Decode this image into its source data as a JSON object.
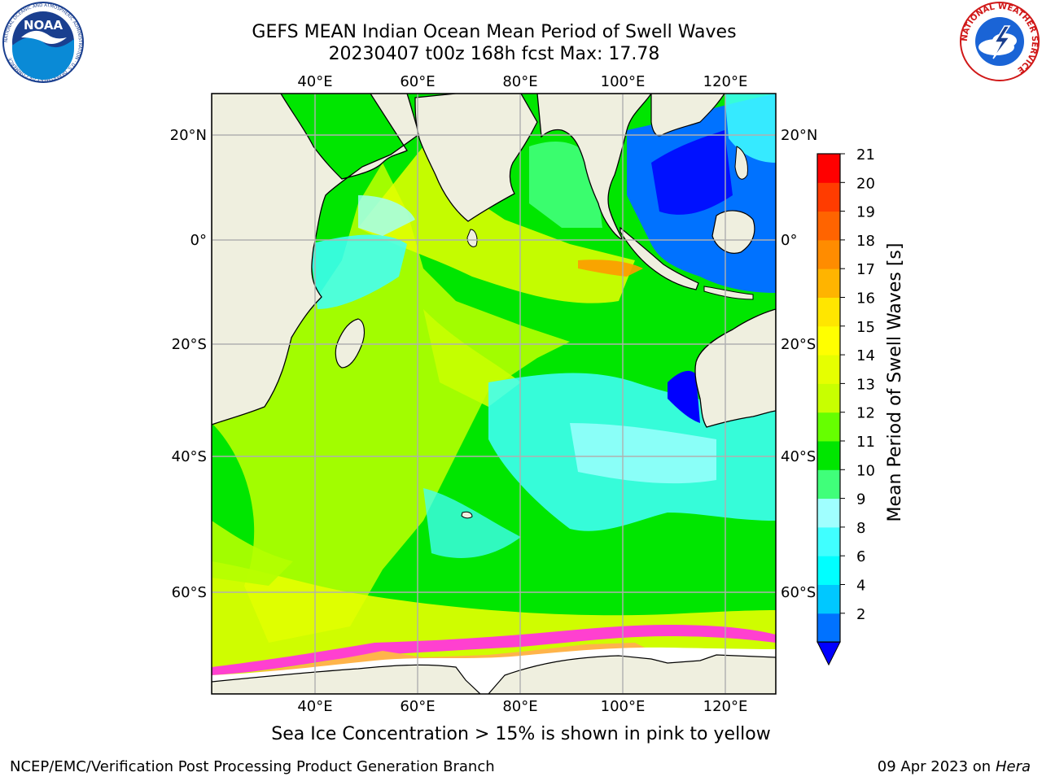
{
  "title_line1": "GEFS MEAN Indian Ocean Mean Period of Swell Waves",
  "title_line2": "20230407 t00z 168h fcst   Max: 17.78",
  "noaa_logo": {
    "center_text": "NOAA",
    "ring_text": "NATIONAL OCEANIC AND ATMOSPHERIC ADMINISTRATION · U.S. DEPARTMENT OF COMMERCE"
  },
  "nws_logo": {
    "ring_text": "NATIONAL WEATHER SERVICE"
  },
  "map": {
    "lon_labels": [
      "40°E",
      "60°E",
      "80°E",
      "100°E",
      "120°E"
    ],
    "lon_values": [
      40,
      60,
      80,
      100,
      120
    ],
    "lat_labels": [
      "20°N",
      "0°",
      "20°S",
      "40°S",
      "60°S"
    ],
    "lat_values": [
      20,
      0,
      -20,
      -40,
      -60
    ],
    "extent": {
      "lon_min": 20,
      "lon_max": 130,
      "lat_min": -70,
      "lat_max": 28
    },
    "colors": {
      "land": "#efefdf",
      "ice_pink": "#ff40d0",
      "ice_orange": "#ffb44a",
      "grid": "#b0b0b0"
    }
  },
  "colorbar": {
    "label": "Mean Period of Swell Waves [s]",
    "ticks": [
      "21",
      "20",
      "19",
      "18",
      "17",
      "16",
      "15",
      "14",
      "13",
      "12",
      "11",
      "10",
      "9",
      "8",
      "6",
      "4",
      "2"
    ],
    "bins": [
      {
        "from": 2,
        "to": 4,
        "color": "#0072ff"
      },
      {
        "from": 4,
        "to": 6,
        "color": "#00c8ff"
      },
      {
        "from": 6,
        "to": 7,
        "color": "#00ffff"
      },
      {
        "from": 7,
        "to": 8,
        "color": "#40ffff"
      },
      {
        "from": 8,
        "to": 9,
        "color": "#a0ffff"
      },
      {
        "from": 9,
        "to": 10,
        "color": "#40ff7a"
      },
      {
        "from": 10,
        "to": 11,
        "color": "#00e600"
      },
      {
        "from": 11,
        "to": 12,
        "color": "#66ff00"
      },
      {
        "from": 12,
        "to": 13,
        "color": "#c8ff00"
      },
      {
        "from": 13,
        "to": 14,
        "color": "#e6ff00"
      },
      {
        "from": 14,
        "to": 15,
        "color": "#ffff00"
      },
      {
        "from": 15,
        "to": 16,
        "color": "#ffe600"
      },
      {
        "from": 16,
        "to": 17,
        "color": "#ffb400"
      },
      {
        "from": 17,
        "to": 18,
        "color": "#ff8c00"
      },
      {
        "from": 18,
        "to": 19,
        "color": "#ff6400"
      },
      {
        "from": 19,
        "to": 20,
        "color": "#ff3c00"
      },
      {
        "from": 20,
        "to": 21,
        "color": "#ff0000"
      }
    ],
    "under_color": "#0000ff"
  },
  "caption": "Sea Ice Concentration > 15% is shown in pink to yellow",
  "footer_left": "NCEP/EMC/Verification Post Processing Product Generation Branch",
  "footer_right_date": "09 Apr 2023 on ",
  "footer_right_host": "Hera"
}
